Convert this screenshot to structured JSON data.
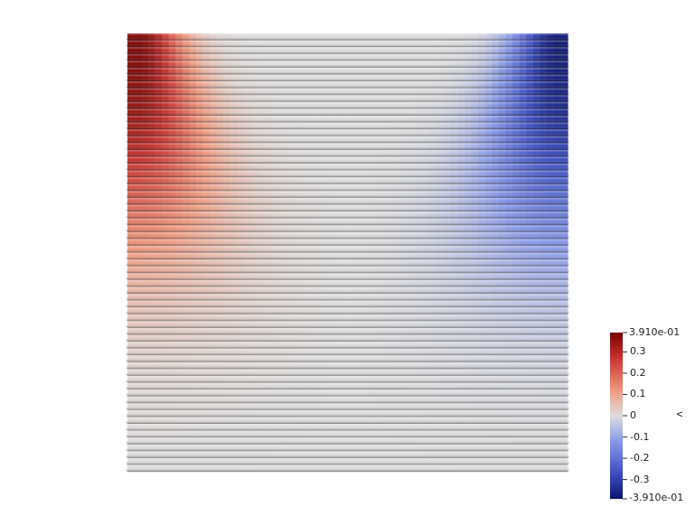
{
  "chart_data": {
    "type": "heatmap",
    "field_name": "v",
    "colormap": "Cool to Warm",
    "colors": {
      "min": "#3b4cc0",
      "mid": "#dddddd",
      "max": "#b40426",
      "deep_min": "#1a1a8c",
      "deep_max": "#7f0000"
    },
    "range": [
      -0.391,
      0.391
    ],
    "colorbar": {
      "title": "v",
      "max_label": "3.910e-01",
      "min_label": "-3.910e-01",
      "ticks": [
        {
          "value": 0.3,
          "label": "0.3"
        },
        {
          "value": 0.2,
          "label": "0.2"
        },
        {
          "value": 0.1,
          "label": "0.1"
        },
        {
          "value": 0.0,
          "label": "0"
        },
        {
          "value": -0.1,
          "label": "-0.1"
        },
        {
          "value": -0.2,
          "label": "-0.2"
        },
        {
          "value": -0.3,
          "label": "-0.3"
        }
      ],
      "placement": "bottom-right"
    },
    "grid": {
      "rows": 64,
      "cols": 64,
      "description_values": {
        "max_region": "top-left corner, value ~0.391",
        "min_region": "top-right corner, value ~-0.391",
        "zero_region": "vertical center line and bottom rows"
      }
    }
  }
}
